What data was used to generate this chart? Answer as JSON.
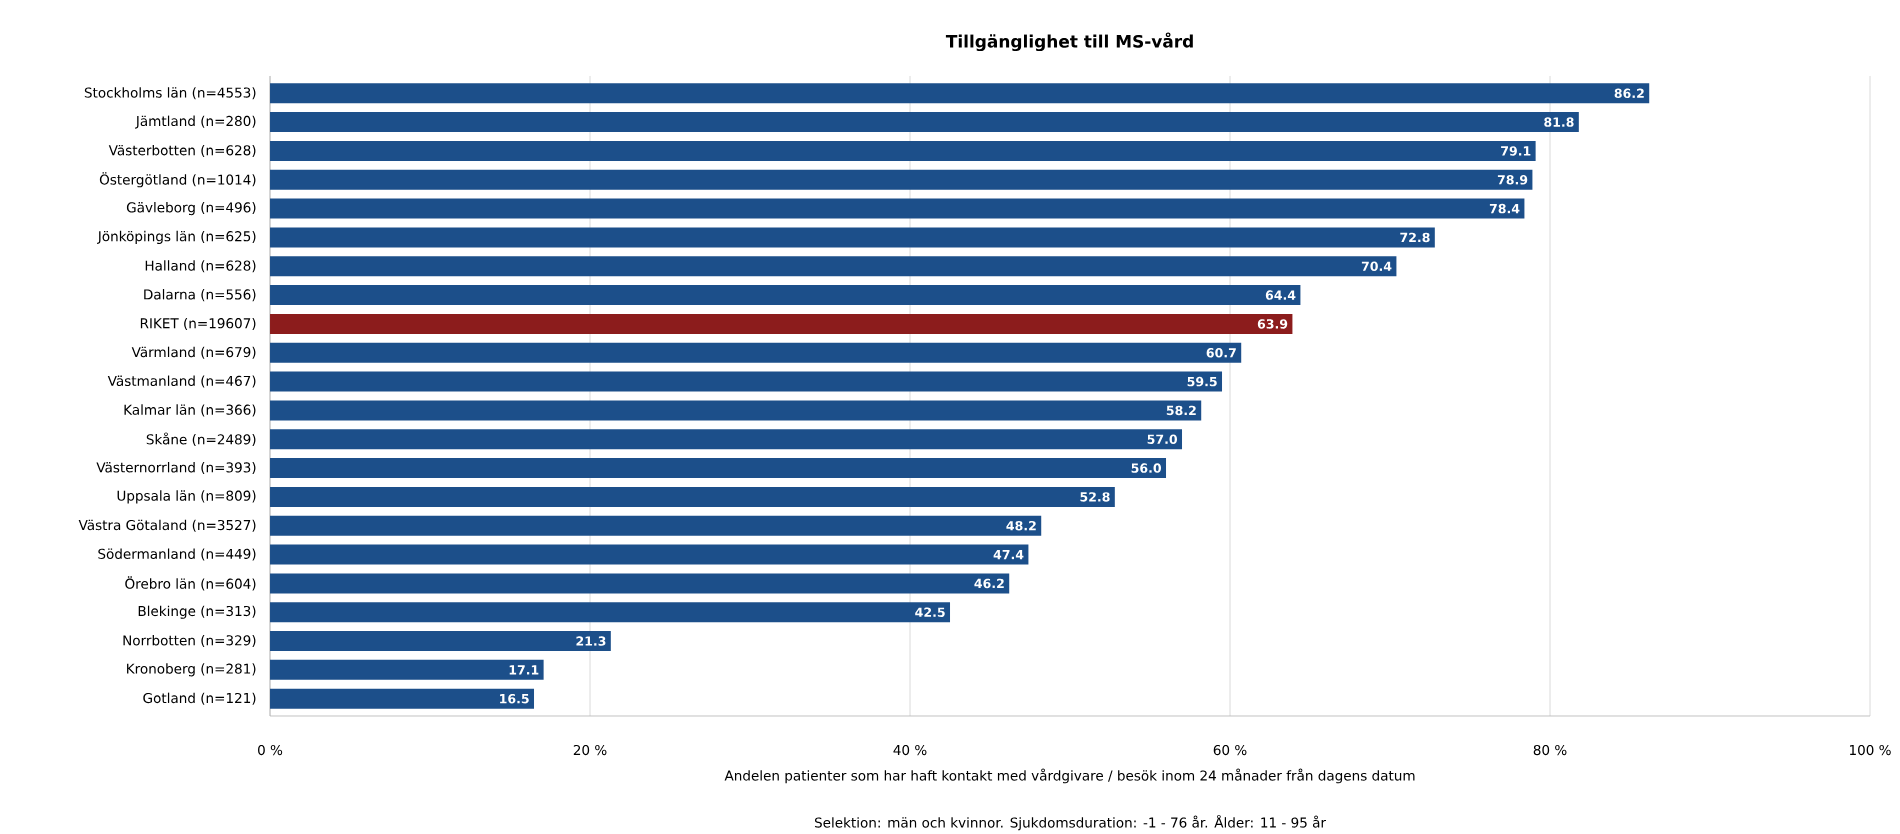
{
  "chart_data": {
    "type": "bar",
    "orientation": "horizontal",
    "title": "Tillgänglighet till MS-vård",
    "xlabel": "Andelen patienter som har haft kontakt med vårdgivare / besök inom 24 månader från dagens datum",
    "annotations": [
      "Selektion: män och kvinnor. Sjukdomsduration: -1 - 76 år. Ålder: 11 - 95 år"
    ],
    "categories": [
      "Stockholms län (n=4553)",
      "Jämtland (n=280)",
      "Västerbotten (n=628)",
      "Östergötland (n=1014)",
      "Gävleborg (n=496)",
      "Jönköpings län (n=625)",
      "Halland (n=628)",
      "Dalarna (n=556)",
      "RIKET (n=19607)",
      "Värmland (n=679)",
      "Västmanland (n=467)",
      "Kalmar län (n=366)",
      "Skåne (n=2489)",
      "Västernorrland (n=393)",
      "Uppsala län (n=809)",
      "Västra Götaland (n=3527)",
      "Södermanland (n=449)",
      "Örebro län (n=604)",
      "Blekinge (n=313)",
      "Norrbotten (n=329)",
      "Kronoberg (n=281)",
      "Gotland (n=121)"
    ],
    "values": [
      86.2,
      81.8,
      79.1,
      78.9,
      78.4,
      72.8,
      70.4,
      64.4,
      63.9,
      60.7,
      59.5,
      58.2,
      57.0,
      56.0,
      52.8,
      48.2,
      47.4,
      46.2,
      42.5,
      21.3,
      17.1,
      16.5
    ],
    "value_labels": [
      "86.2",
      "81.8",
      "79.1",
      "78.9",
      "78.4",
      "72.8",
      "70.4",
      "64.4",
      "63.9",
      "60.7",
      "59.5",
      "58.2",
      "57.0",
      "56.0",
      "52.8",
      "48.2",
      "47.4",
      "46.2",
      "42.5",
      "21.3",
      "17.1",
      "16.5"
    ],
    "colors": [
      "#1c4f8a",
      "#1c4f8a",
      "#1c4f8a",
      "#1c4f8a",
      "#1c4f8a",
      "#1c4f8a",
      "#1c4f8a",
      "#1c4f8a",
      "#8c1c1c",
      "#1c4f8a",
      "#1c4f8a",
      "#1c4f8a",
      "#1c4f8a",
      "#1c4f8a",
      "#1c4f8a",
      "#1c4f8a",
      "#1c4f8a",
      "#1c4f8a",
      "#1c4f8a",
      "#1c4f8a",
      "#1c4f8a",
      "#1c4f8a"
    ],
    "xlim": [
      0,
      100
    ],
    "xticks": [
      {
        "value": 0,
        "label": "0 %"
      },
      {
        "value": 20,
        "label": "20 %"
      },
      {
        "value": 40,
        "label": "40 %"
      },
      {
        "value": 60,
        "label": "60 %"
      },
      {
        "value": 80,
        "label": "80 %"
      },
      {
        "value": 100,
        "label": "100 %"
      }
    ],
    "grid": "x"
  }
}
